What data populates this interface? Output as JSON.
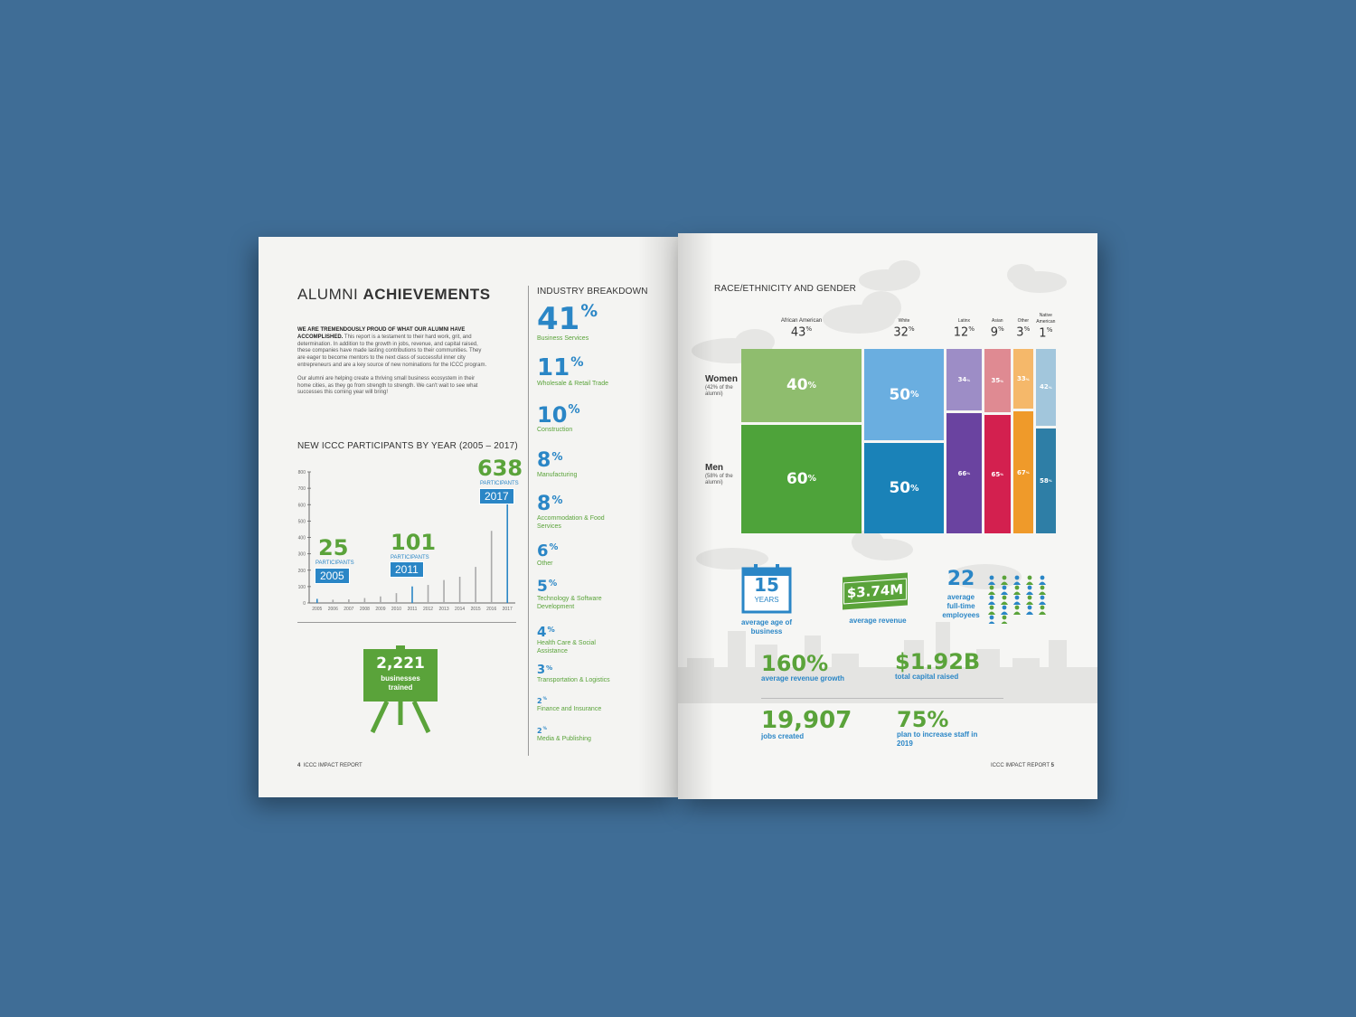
{
  "left_page": {
    "title_light": "ALUMNI ",
    "title_bold": "ACHIEVEMENTS",
    "intro_bold": "WE ARE TREMENDOUSLY PROUD OF WHAT OUR ALUMNI HAVE ACCOMPLISHED.",
    "intro_text": " This report is a testament to their hard work, grit, and determination. In addition to the growth in jobs, revenue, and capital raised, these companies have made lasting contributions to their communities. They are eager to become mentors to the next class of successful inner city entrepreneurs and are a key source of new nominations for the ICCC program.",
    "intro_text2": "Our alumni are helping create a thriving small business ecosystem in their home cities, as they go from strength to strength. We can't wait to see what successes this coming year will bring!",
    "chart_title": "NEW ICCC PARTICIPANTS BY YEAR (2005 – 2017)",
    "callouts": [
      {
        "value": "25",
        "caption": "PARTICIPANTS",
        "year": "2005"
      },
      {
        "value": "101",
        "caption": "PARTICIPANTS",
        "year": "2011"
      },
      {
        "value": "638",
        "caption": "PARTICIPANTS",
        "year": "2017"
      }
    ],
    "businesses_value": "2,221",
    "businesses_label": "businesses trained",
    "footer_num": "4",
    "footer_text": "ICCC IMPACT REPORT"
  },
  "industry": {
    "title": "INDUSTRY BREAKDOWN",
    "items": [
      {
        "value": "41",
        "label": "Business Services"
      },
      {
        "value": "11",
        "label": "Wholesale & Retail Trade"
      },
      {
        "value": "10",
        "label": "Construction"
      },
      {
        "value": "8",
        "label": "Manufacturing"
      },
      {
        "value": "8",
        "label": "Accommodation & Food Services"
      },
      {
        "value": "6",
        "label": "Other"
      },
      {
        "value": "5",
        "label": "Technology & Software Development"
      },
      {
        "value": "4",
        "label": "Health Care & Social Assistance"
      },
      {
        "value": "3",
        "label": "Transportation & Logistics"
      },
      {
        "value": "2",
        "label": "Finance and Insurance"
      },
      {
        "value": "2",
        "label": "Media & Publishing"
      }
    ],
    "pct": "%"
  },
  "chart_data": [
    {
      "type": "bar",
      "title": "NEW ICCC PARTICIPANTS BY YEAR (2005 – 2017)",
      "categories": [
        "2005",
        "2006",
        "2007",
        "2008",
        "2009",
        "2010",
        "2011",
        "2012",
        "2013",
        "2014",
        "2015",
        "2016",
        "2017"
      ],
      "values": [
        25,
        20,
        22,
        30,
        40,
        60,
        101,
        110,
        140,
        160,
        220,
        440,
        638
      ],
      "yticks": [
        "0",
        "100",
        "200",
        "300",
        "400",
        "500",
        "600",
        "700",
        "800"
      ],
      "ylim": [
        0,
        800
      ]
    },
    {
      "type": "bar",
      "title": "RACE/ETHNICITY AND GENDER",
      "rows": [
        "Women",
        "Men"
      ],
      "row_notes": [
        "(42% of the alumni)",
        "(58% of the alumni)"
      ],
      "columns": [
        {
          "name": "African American",
          "share": "43",
          "women": "40",
          "men": "60",
          "women_color": "#8fbd6e",
          "men_color": "#4ea33a"
        },
        {
          "name": "White",
          "share": "32",
          "women": "50",
          "men": "50",
          "women_color": "#6aaee0",
          "men_color": "#1a82b8"
        },
        {
          "name": "Latinx",
          "share": "12",
          "women": "34",
          "men": "66",
          "women_color": "#9d8dc6",
          "men_color": "#6a43a0"
        },
        {
          "name": "Asian",
          "share": "9",
          "women": "35",
          "men": "65",
          "women_color": "#df8a92",
          "men_color": "#d3204f"
        },
        {
          "name": "Other",
          "share": "3",
          "women": "33",
          "men": "67",
          "women_color": "#f5b86a",
          "men_color": "#ef9a2a"
        },
        {
          "name": "Native American",
          "share": "1",
          "women": "42",
          "men": "58",
          "women_color": "#a2c6dc",
          "men_color": "#2e7ea6"
        }
      ]
    }
  ],
  "right_page": {
    "title": "RACE/ETHNICITY AND GENDER",
    "women_label": "Women",
    "women_note": "(42% of the alumni)",
    "men_label": "Men",
    "men_note": "(58% of the alumni)",
    "age_value": "15",
    "age_unit": "YEARS",
    "age_label": "average age of business",
    "revenue_value": "$3.74M",
    "revenue_label": "average revenue",
    "employees_value": "22",
    "employees_label": "average full-time employees",
    "growth_value": "160%",
    "growth_label": "average revenue growth",
    "capital_value": "$1.92B",
    "capital_label": "total capital raised",
    "jobs_value": "19,907",
    "jobs_label": "jobs created",
    "plan_value": "75%",
    "plan_label": "plan to increase staff in 2019",
    "footer_text": "ICCC IMPACT REPORT",
    "footer_num": "5"
  },
  "colors": {
    "background": "#3f6d96",
    "green": "#5aa33a",
    "blue": "#2a86c6"
  }
}
